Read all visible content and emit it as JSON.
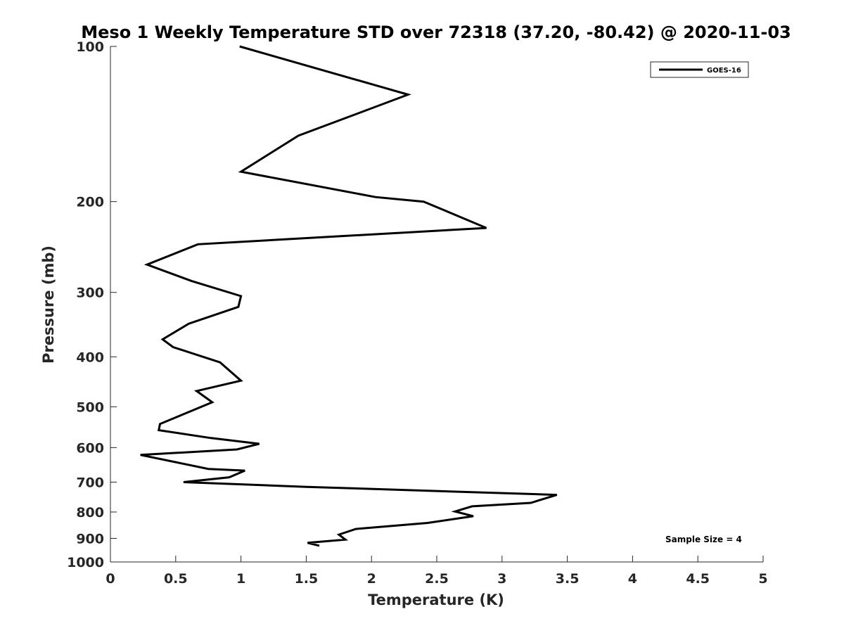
{
  "chart_data": {
    "type": "line",
    "title": "Meso 1 Weekly Temperature STD over 72318 (37.20, -80.42) @ 2020-11-03",
    "xlabel": "Temperature (K)",
    "ylabel": "Pressure (mb)",
    "xlim": [
      0,
      5
    ],
    "ylim": [
      100,
      1000
    ],
    "y_scale": "log",
    "y_reversed": true,
    "x_ticks": [
      0,
      0.5,
      1,
      1.5,
      2,
      2.5,
      3,
      3.5,
      4,
      4.5,
      5
    ],
    "x_tick_labels": [
      "0",
      "0.5",
      "1",
      "1.5",
      "2",
      "2.5",
      "3",
      "3.5",
      "4",
      "4.5",
      "5"
    ],
    "y_ticks": [
      100,
      200,
      300,
      400,
      500,
      600,
      700,
      800,
      900,
      1000
    ],
    "y_tick_labels": [
      "100",
      "200",
      "300",
      "400",
      "500",
      "600",
      "700",
      "800",
      "900",
      "1000"
    ],
    "grid": false,
    "legend_position": "top-right",
    "series": [
      {
        "name": "GOES-16",
        "color": "#000000",
        "points": [
          [
            0.99,
            100
          ],
          [
            2.28,
            124
          ],
          [
            1.44,
            149
          ],
          [
            1.0,
            175
          ],
          [
            2.03,
            196
          ],
          [
            2.4,
            200
          ],
          [
            2.88,
            225
          ],
          [
            0.67,
            242
          ],
          [
            0.28,
            265
          ],
          [
            0.62,
            285
          ],
          [
            1.0,
            305
          ],
          [
            0.98,
            320
          ],
          [
            0.6,
            345
          ],
          [
            0.4,
            370
          ],
          [
            0.48,
            383
          ],
          [
            0.84,
            410
          ],
          [
            1.0,
            445
          ],
          [
            0.66,
            466
          ],
          [
            0.78,
            490
          ],
          [
            0.38,
            540
          ],
          [
            0.37,
            555
          ],
          [
            0.77,
            575
          ],
          [
            1.14,
            590
          ],
          [
            0.97,
            605
          ],
          [
            0.23,
            620
          ],
          [
            0.75,
            660
          ],
          [
            1.03,
            665
          ],
          [
            0.91,
            685
          ],
          [
            0.56,
            700
          ],
          [
            1.5,
            715
          ],
          [
            3.42,
            741
          ],
          [
            3.22,
            768
          ],
          [
            2.77,
            780
          ],
          [
            2.64,
            798
          ],
          [
            2.78,
            815
          ],
          [
            2.43,
            840
          ],
          [
            1.88,
            863
          ],
          [
            1.75,
            885
          ],
          [
            1.8,
            905
          ],
          [
            1.51,
            918
          ],
          [
            1.6,
            930
          ]
        ]
      }
    ],
    "annotations": [
      "Sample Size = 4"
    ]
  }
}
